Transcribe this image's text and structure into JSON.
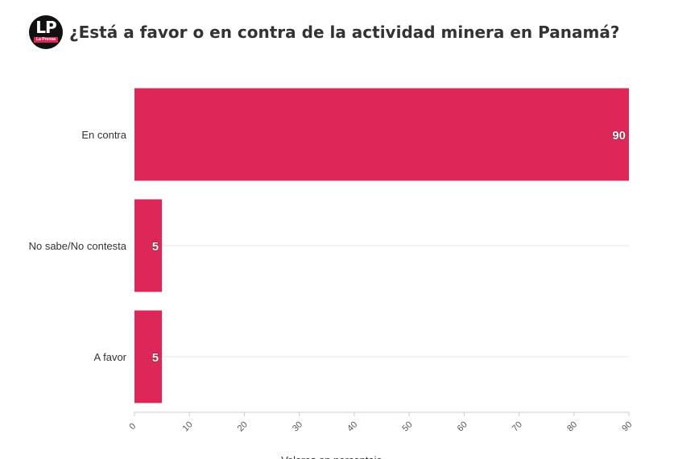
{
  "header": {
    "logo_text": "LP",
    "logo_subtext": "La Prensa",
    "title": "¿Está a favor o en contra de la actividad minera en Panamá?"
  },
  "colors": {
    "bar": "#dc2758",
    "grid": "#e9e9e9",
    "axis_text": "#333333"
  },
  "chart_data": {
    "type": "bar",
    "orientation": "horizontal",
    "categories": [
      "En contra",
      "No sabe/No contesta",
      "A favor"
    ],
    "values": [
      90,
      5,
      5
    ],
    "data_labels": [
      "90",
      "5",
      "5"
    ],
    "xlim": [
      0,
      90
    ],
    "x_ticks": [
      "0",
      "10",
      "20",
      "30",
      "40",
      "50",
      "60",
      "70",
      "80",
      "90"
    ],
    "xlabel": "Valores en porcentaje",
    "ylabel": "",
    "grid": true,
    "legend": "none"
  }
}
